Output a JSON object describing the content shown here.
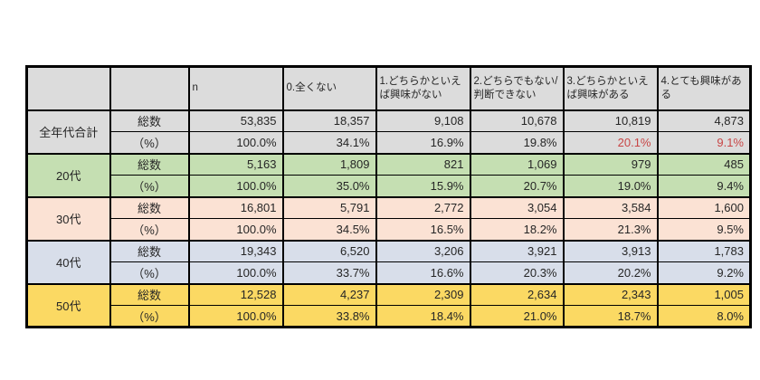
{
  "table": {
    "columns": [
      "",
      "",
      "n",
      "0.全くない",
      "1.どちらかといえば興味がない",
      "2.どちらでもない/判断できない",
      "3.どちらかといえば興味がある",
      "4.とても興味がある"
    ],
    "row_labels": {
      "count": "総数",
      "percent": "（%）"
    },
    "groups": [
      {
        "label": "全年代合計",
        "bg": "#DCDCDC",
        "count": [
          "53,835",
          "18,357",
          "9,108",
          "10,678",
          "10,819",
          "4,873"
        ],
        "percent": [
          "100.0%",
          "34.1%",
          "16.9%",
          "19.8%",
          "20.1%",
          "9.1%"
        ],
        "percent_red": [
          4,
          5
        ]
      },
      {
        "label": "20代",
        "bg": "#C5DFB2",
        "count": [
          "5,163",
          "1,809",
          "821",
          "1,069",
          "979",
          "485"
        ],
        "percent": [
          "100.0%",
          "35.0%",
          "15.9%",
          "20.7%",
          "19.0%",
          "9.4%"
        ],
        "percent_red": []
      },
      {
        "label": "30代",
        "bg": "#FBE2D4",
        "count": [
          "16,801",
          "5,791",
          "2,772",
          "3,054",
          "3,584",
          "1,600"
        ],
        "percent": [
          "100.0%",
          "34.5%",
          "16.5%",
          "18.2%",
          "21.3%",
          "9.5%"
        ],
        "percent_red": []
      },
      {
        "label": "40代",
        "bg": "#D8DEEA",
        "count": [
          "19,343",
          "6,520",
          "3,206",
          "3,921",
          "3,913",
          "1,783"
        ],
        "percent": [
          "100.0%",
          "33.7%",
          "16.6%",
          "20.3%",
          "20.2%",
          "9.2%"
        ],
        "percent_red": []
      },
      {
        "label": "50代",
        "bg": "#FBD963",
        "count": [
          "12,528",
          "4,237",
          "2,309",
          "2,634",
          "2,343",
          "1,005"
        ],
        "percent": [
          "100.0%",
          "33.8%",
          "18.4%",
          "21.0%",
          "18.7%",
          "8.0%"
        ],
        "percent_red": []
      }
    ],
    "colors": {
      "header_bg": "#DCDCDC",
      "border": "#000000",
      "red_text": "#C84646",
      "page_bg": "#FFFFFF"
    }
  },
  "chart_data": {
    "type": "table",
    "title": "",
    "columns": [
      "",
      "",
      "n",
      "0.全くない",
      "1.どちらかといえば興味がない",
      "2.どちらでもない/判断できない",
      "3.どちらかといえば興味がある",
      "4.とても興味がある"
    ],
    "rows": [
      [
        "全年代合計",
        "総数",
        "53,835",
        "18,357",
        "9,108",
        "10,678",
        "10,819",
        "4,873"
      ],
      [
        "全年代合計",
        "（%）",
        "100.0%",
        "34.1%",
        "16.9%",
        "19.8%",
        "20.1%",
        "9.1%"
      ],
      [
        "20代",
        "総数",
        "5,163",
        "1,809",
        "821",
        "1,069",
        "979",
        "485"
      ],
      [
        "20代",
        "（%）",
        "100.0%",
        "35.0%",
        "15.9%",
        "20.7%",
        "19.0%",
        "9.4%"
      ],
      [
        "30代",
        "総数",
        "16,801",
        "5,791",
        "2,772",
        "3,054",
        "3,584",
        "1,600"
      ],
      [
        "30代",
        "（%）",
        "100.0%",
        "34.5%",
        "16.5%",
        "18.2%",
        "21.3%",
        "9.5%"
      ],
      [
        "40代",
        "総数",
        "19,343",
        "6,520",
        "3,206",
        "3,921",
        "3,913",
        "1,783"
      ],
      [
        "40代",
        "（%）",
        "100.0%",
        "33.7%",
        "16.6%",
        "20.3%",
        "20.2%",
        "9.2%"
      ],
      [
        "50代",
        "総数",
        "12,528",
        "4,237",
        "2,309",
        "2,634",
        "2,343",
        "1,005"
      ],
      [
        "50代",
        "（%）",
        "100.0%",
        "33.8%",
        "18.4%",
        "21.0%",
        "18.7%",
        "8.0%"
      ]
    ]
  }
}
